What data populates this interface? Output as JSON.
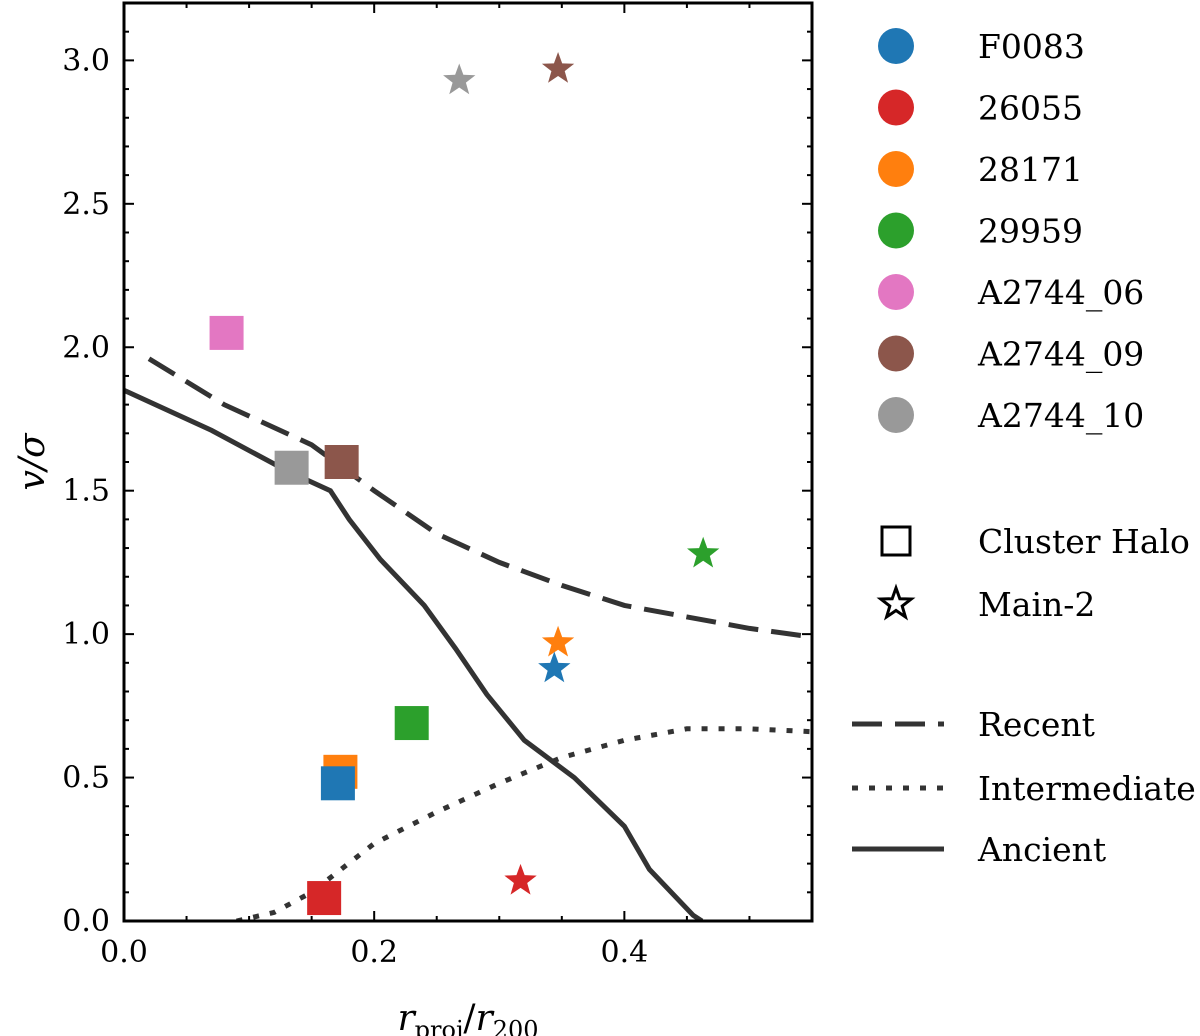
{
  "chart_data": {
    "type": "scatter",
    "xlabel": "r_proj / r_200",
    "xlabel_parts": {
      "r1": "r",
      "sub1": "proj",
      "slash": "/",
      "r2": "r",
      "sub2": "200"
    },
    "ylabel": "v/σ",
    "xlim": [
      0.0,
      0.55
    ],
    "ylim": [
      0.0,
      3.2
    ],
    "x_ticks": [
      "0.0",
      "0.2",
      "0.4"
    ],
    "x_tick_values": [
      0.0,
      0.2,
      0.4
    ],
    "y_ticks": [
      "0.0",
      "0.5",
      "1.0",
      "1.5",
      "2.0",
      "2.5",
      "3.0"
    ],
    "y_tick_values": [
      0.0,
      0.5,
      1.0,
      1.5,
      2.0,
      2.5,
      3.0
    ],
    "galaxies": [
      {
        "name": "F0083",
        "color": "#1f77b4"
      },
      {
        "name": "26055",
        "color": "#d62728"
      },
      {
        "name": "28171",
        "color": "#ff7f0e"
      },
      {
        "name": "29959",
        "color": "#2ca02c"
      },
      {
        "name": "A2744_06",
        "color": "#e377c2"
      },
      {
        "name": "A2744_09",
        "color": "#8c564b"
      },
      {
        "name": "A2744_10",
        "color": "#999999"
      }
    ],
    "cluster_halo_points": [
      {
        "galaxy": "28171",
        "x": 0.173,
        "y": 0.52
      },
      {
        "galaxy": "F0083",
        "x": 0.171,
        "y": 0.48
      },
      {
        "galaxy": "26055",
        "x": 0.16,
        "y": 0.08
      },
      {
        "galaxy": "29959",
        "x": 0.23,
        "y": 0.69
      },
      {
        "galaxy": "A2744_06",
        "x": 0.082,
        "y": 2.05
      },
      {
        "galaxy": "A2744_10",
        "x": 0.134,
        "y": 1.58
      },
      {
        "galaxy": "A2744_09",
        "x": 0.174,
        "y": 1.6
      }
    ],
    "main2_points": [
      {
        "galaxy": "A2744_10",
        "x": 0.268,
        "y": 2.93
      },
      {
        "galaxy": "A2744_09",
        "x": 0.347,
        "y": 2.97
      },
      {
        "galaxy": "29959",
        "x": 0.463,
        "y": 1.28
      },
      {
        "galaxy": "28171",
        "x": 0.347,
        "y": 0.97
      },
      {
        "galaxy": "F0083",
        "x": 0.344,
        "y": 0.88
      },
      {
        "galaxy": "26055",
        "x": 0.317,
        "y": 0.14
      }
    ],
    "lines": [
      {
        "name": "Recent",
        "style": "dashed",
        "x": [
          0.02,
          0.08,
          0.15,
          0.2,
          0.25,
          0.3,
          0.35,
          0.4,
          0.45,
          0.5,
          0.55
        ],
        "y": [
          1.96,
          1.8,
          1.66,
          1.5,
          1.35,
          1.25,
          1.17,
          1.1,
          1.06,
          1.02,
          0.99
        ]
      },
      {
        "name": "Intermediate",
        "style": "dotted",
        "x": [
          0.09,
          0.12,
          0.15,
          0.2,
          0.25,
          0.3,
          0.35,
          0.4,
          0.45,
          0.5,
          0.55
        ],
        "y": [
          0.0,
          0.03,
          0.1,
          0.27,
          0.38,
          0.48,
          0.57,
          0.63,
          0.67,
          0.67,
          0.66
        ]
      },
      {
        "name": "Ancient",
        "style": "solid",
        "x": [
          0.0,
          0.07,
          0.13,
          0.165,
          0.18,
          0.205,
          0.24,
          0.265,
          0.29,
          0.32,
          0.36,
          0.4,
          0.42,
          0.455,
          0.462
        ],
        "y": [
          1.85,
          1.71,
          1.57,
          1.5,
          1.4,
          1.26,
          1.1,
          0.95,
          0.79,
          0.63,
          0.5,
          0.33,
          0.18,
          0.02,
          0.0
        ]
      }
    ],
    "marker_legend": [
      {
        "label": "Cluster Halo",
        "marker": "square"
      },
      {
        "label": "Main-2",
        "marker": "star"
      }
    ],
    "line_legend": [
      "Recent",
      "Intermediate",
      "Ancient"
    ]
  }
}
